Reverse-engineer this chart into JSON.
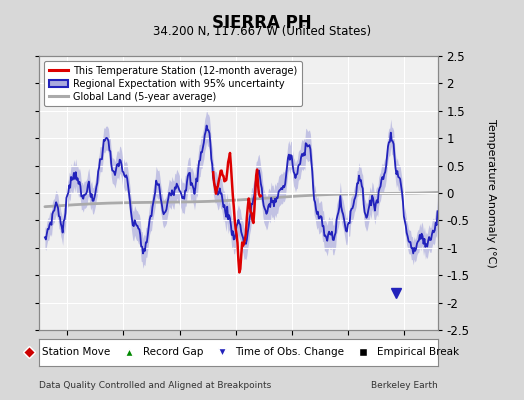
{
  "title": "SIERRA PH",
  "subtitle": "34.200 N, 117.667 W (United States)",
  "xlabel_bottom": "Data Quality Controlled and Aligned at Breakpoints",
  "xlabel_right": "Berkeley Earth",
  "ylabel": "Temperature Anomaly (°C)",
  "xlim": [
    1917.5,
    1953.0
  ],
  "ylim": [
    -2.5,
    2.5
  ],
  "xticks": [
    1920,
    1925,
    1930,
    1935,
    1940,
    1945,
    1950
  ],
  "yticks_right": [
    -2.5,
    -2,
    -1.5,
    -1,
    -0.5,
    0,
    0.5,
    1,
    1.5,
    2,
    2.5
  ],
  "ytick_labels_right": [
    "-2.5",
    "-2",
    "-1.5",
    "-1",
    "-0.5",
    "0",
    "0.5",
    "1",
    "1.5",
    "2",
    "2.5"
  ],
  "bg_color": "#d8d8d8",
  "plot_bg_color": "#f0f0f0",
  "grid_color": "#ffffff",
  "regional_color": "#2222bb",
  "regional_fill_color": "#aaaadd",
  "station_color": "#dd0000",
  "global_color": "#aaaaaa",
  "obs_change_year": 1949.3,
  "obs_change_val": -1.82
}
